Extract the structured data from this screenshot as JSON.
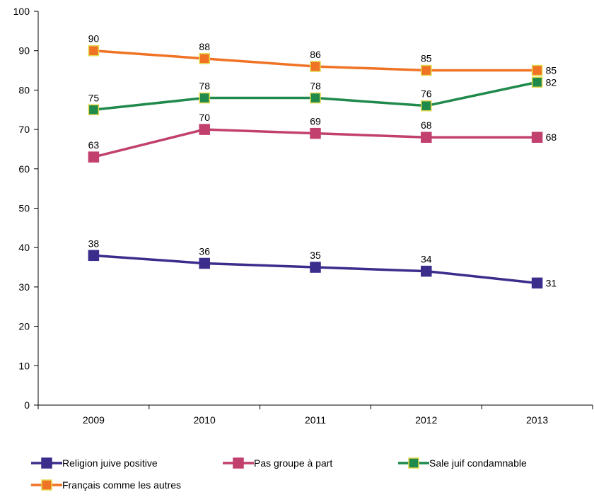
{
  "chart_data": {
    "type": "line",
    "title": "",
    "xlabel": "",
    "ylabel": "",
    "categories": [
      "2009",
      "2010",
      "2011",
      "2012",
      "2013"
    ],
    "ylim": [
      0,
      100
    ],
    "yticks": [
      0,
      10,
      20,
      30,
      40,
      50,
      60,
      70,
      80,
      90,
      100
    ],
    "grid": false,
    "legend_position": "bottom",
    "series": [
      {
        "name": "Religion juive positive",
        "values": [
          38,
          36,
          35,
          34,
          31
        ],
        "color": "#3b2d8c",
        "marker_fill": "#3b2d8c",
        "marker_edge": "#3b2d8c"
      },
      {
        "name": "Pas groupe à part",
        "values": [
          63,
          70,
          69,
          68,
          68
        ],
        "color": "#c2406e",
        "marker_fill": "#c2406e",
        "marker_edge": "#c2406e"
      },
      {
        "name": "Sale juif condamnable",
        "values": [
          75,
          78,
          78,
          76,
          82
        ],
        "color": "#1f8a4c",
        "marker_fill": "#1f8a4c",
        "marker_edge": "#e3d84a"
      },
      {
        "name": "Français comme les autres",
        "values": [
          90,
          88,
          86,
          85,
          85
        ],
        "color": "#f07325",
        "marker_fill": "#f07325",
        "marker_edge": "#e3d84a"
      }
    ]
  }
}
